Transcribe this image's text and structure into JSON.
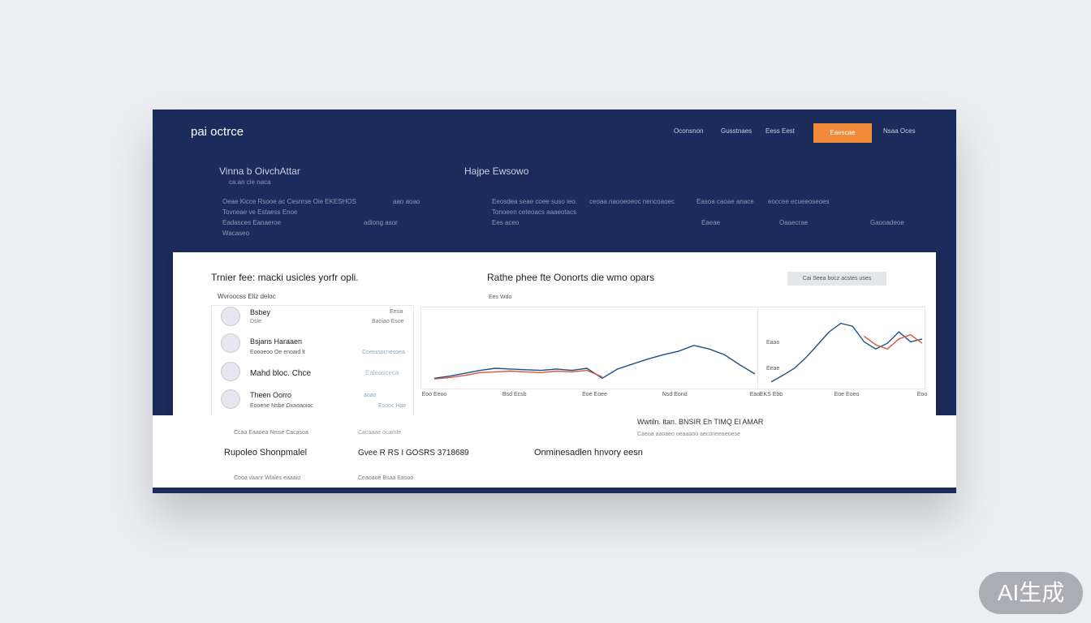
{
  "header": {
    "logo": "pai octrce",
    "nav": [
      "Oconsnon",
      "Gusstnaes",
      "Eess Eest",
      "Nsaa Oces"
    ],
    "button": "Eaescae"
  },
  "hero": {
    "left_title": "Vinna b OivchAttar",
    "left_sub": "ca.an cie naca",
    "right_title": "Hajpe Ewsowo",
    "left_rows": [
      "Oeae Kicce Rsooe ac Cesnrse Oie EKESHOS",
      "Tovneae ve Estaess Enoe",
      "Eadasces Eanaeroe",
      "Wacaseo"
    ],
    "left_side": [
      "aao aoao",
      "adiong asor"
    ],
    "right_rows": [
      "Eeosdea seae coee suso ieo.",
      "Tonoeen ceteoacs aaaeotacs",
      "Ees aceo"
    ],
    "right_cols": [
      "ceoaa naooeoeoc nencoaoec",
      "Easoa caoae anace",
      "eoccee ecueeoseoes"
    ],
    "right_labels": [
      "Eaeae",
      "Oaaecrae",
      "Gaooadeoe"
    ]
  },
  "card": {
    "title": "Trnier fee: macki usicles yorfr opli.",
    "subtitle": "Wvroocss Eliz deloc",
    "items": [
      {
        "name": "Bsbey",
        "sub": "Dsle",
        "value": "Eeoa",
        "note": "Baoiao Esoe"
      },
      {
        "name": "Bsjans Haraaen",
        "sub": "Eoooeoo Oe enoaid lt",
        "value": "",
        "note": "Coerasocnesoea"
      },
      {
        "name": "Mahd bloc. Chce",
        "sub": "",
        "value": "",
        "note": "Ealeosceca"
      },
      {
        "name": "Theen Oorro",
        "sub": "Eooene Nsbe Oxaoaoioc",
        "value": "aoao",
        "note": "Esooc Hae"
      }
    ],
    "chart_title": "Rathe phee fte Oonorts die wmo opars",
    "chart_sub": "Ees  Wdo",
    "filter": "Cai  Seea bocz acstes uses"
  },
  "charts": [
    {
      "type": "line",
      "ylim": [
        0,
        100
      ],
      "x_labels": [
        "Eoo Eeoo",
        "Bsd Ecsb",
        "Eoe Eoee",
        "Nsd Eond",
        "Eao"
      ],
      "series": [
        {
          "color": "#1f4e8c",
          "values": [
            11,
            14,
            18,
            22,
            25,
            24,
            23,
            22,
            24,
            22,
            25,
            11,
            24,
            31,
            38,
            44,
            49,
            57,
            52,
            44,
            30,
            17
          ]
        },
        {
          "color": "#d9553a",
          "values": [
            10,
            12,
            15,
            19,
            20,
            21,
            20,
            19,
            21,
            20,
            22,
            13,
            null,
            null,
            null,
            null,
            null,
            null,
            null,
            null,
            null,
            null
          ]
        }
      ]
    },
    {
      "type": "line",
      "ylim": [
        0,
        100
      ],
      "y_labels": [
        "Eaao",
        "Eeae"
      ],
      "x_labels": [
        "EKS Ebb",
        "Eoe Eoeo",
        "Eoo"
      ],
      "series": [
        {
          "color": "#1f4e8c",
          "values": [
            6,
            15,
            25,
            40,
            58,
            76,
            88,
            84,
            62,
            52,
            60,
            76,
            62,
            66
          ]
        },
        {
          "color": "#d9553a",
          "values": [
            null,
            null,
            null,
            null,
            null,
            null,
            null,
            null,
            70,
            58,
            52,
            66,
            72,
            60
          ]
        }
      ]
    }
  ],
  "footer": {
    "banner": "Wwtiln. ltan.  BNSIR Eh TIMQ El AMAR",
    "banner_sub": "Caeoa aaoaeo oeaaaoo aeconeeaeoese",
    "items": [
      "Rupoleo Shonpmalel",
      "Gvee R RS I GOSRS 3718689",
      "Onminesadlen hnvory eesn"
    ],
    "subs": [
      "Ccaa Eaaoea Neise Cacasoa",
      "Cacaaae ocarnte",
      "Cooa vaanr Wlaies eaaaio",
      "Ceaoaoe Bsaa Easoo"
    ]
  },
  "watermark": "AI生成"
}
